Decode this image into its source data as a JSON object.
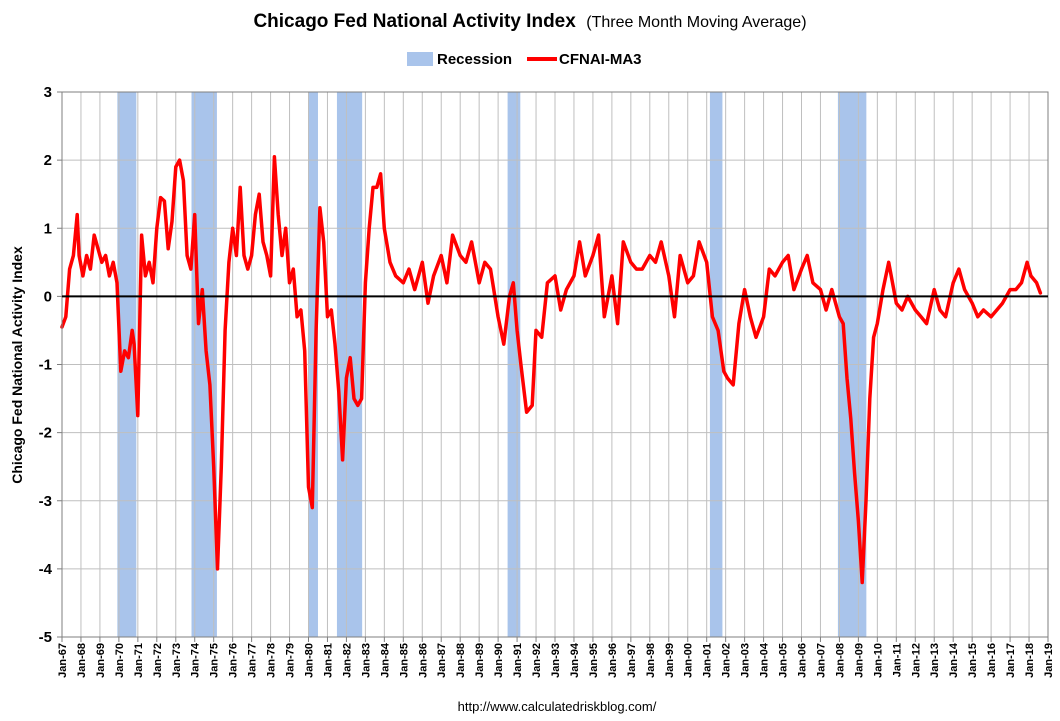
{
  "chart_data": {
    "type": "line",
    "title": "Chicago Fed National Activity Index",
    "subtitle": "(Three Month Moving Average)",
    "ylabel": "Chicago Fed National Activity Index",
    "xlabel": "",
    "source": "http://www.calculatedriskblog.com/",
    "ylim": [
      -5,
      3
    ],
    "yticks": [
      "3",
      "2",
      "1",
      "0",
      "-1",
      "-2",
      "-3",
      "-4",
      "-5"
    ],
    "xlim": [
      1967.0,
      2019.0
    ],
    "xticks": [
      "Jan-67",
      "Jan-68",
      "Jan-69",
      "Jan-70",
      "Jan-71",
      "Jan-72",
      "Jan-73",
      "Jan-74",
      "Jan-75",
      "Jan-76",
      "Jan-77",
      "Jan-78",
      "Jan-79",
      "Jan-80",
      "Jan-81",
      "Jan-82",
      "Jan-83",
      "Jan-84",
      "Jan-85",
      "Jan-86",
      "Jan-87",
      "Jan-88",
      "Jan-89",
      "Jan-90",
      "Jan-91",
      "Jan-92",
      "Jan-93",
      "Jan-94",
      "Jan-95",
      "Jan-96",
      "Jan-97",
      "Jan-98",
      "Jan-99",
      "Jan-00",
      "Jan-01",
      "Jan-02",
      "Jan-03",
      "Jan-04",
      "Jan-05",
      "Jan-06",
      "Jan-07",
      "Jan-08",
      "Jan-09",
      "Jan-10",
      "Jan-11",
      "Jan-12",
      "Jan-13",
      "Jan-14",
      "Jan-15",
      "Jan-16",
      "Jan-17",
      "Jan-18",
      "Jan-19"
    ],
    "grid": true,
    "legend_position": "top-center",
    "legend": [
      {
        "label": "Recession",
        "color": "#a9c4eb"
      },
      {
        "label": "CFNAI-MA3",
        "color": "#ff0000"
      }
    ],
    "recessions": [
      [
        1969.92,
        1970.92
      ],
      [
        1973.83,
        1975.17
      ],
      [
        1980.0,
        1980.5
      ],
      [
        1981.5,
        1982.83
      ],
      [
        1990.5,
        1991.17
      ],
      [
        2001.17,
        2001.83
      ],
      [
        2007.92,
        2009.42
      ]
    ],
    "series": [
      {
        "name": "CFNAI-MA3",
        "color": "#ff0000",
        "x": [
          1967.0,
          1967.2,
          1967.4,
          1967.6,
          1967.8,
          1967.9,
          1968.1,
          1968.3,
          1968.5,
          1968.7,
          1968.9,
          1969.1,
          1969.3,
          1969.5,
          1969.7,
          1969.9,
          1970.1,
          1970.3,
          1970.5,
          1970.7,
          1970.8,
          1971.0,
          1971.2,
          1971.4,
          1971.6,
          1971.8,
          1972.0,
          1972.2,
          1972.4,
          1972.6,
          1972.8,
          1973.0,
          1973.2,
          1973.4,
          1973.6,
          1973.8,
          1974.0,
          1974.2,
          1974.4,
          1974.6,
          1974.8,
          1975.0,
          1975.2,
          1975.4,
          1975.6,
          1975.8,
          1976.0,
          1976.2,
          1976.4,
          1976.6,
          1976.8,
          1977.0,
          1977.2,
          1977.4,
          1977.6,
          1977.8,
          1978.0,
          1978.2,
          1978.4,
          1978.6,
          1978.8,
          1979.0,
          1979.2,
          1979.4,
          1979.6,
          1979.8,
          1980.0,
          1980.2,
          1980.4,
          1980.6,
          1980.8,
          1981.0,
          1981.2,
          1981.4,
          1981.6,
          1981.8,
          1982.0,
          1982.2,
          1982.4,
          1982.6,
          1982.8,
          1983.0,
          1983.2,
          1983.4,
          1983.6,
          1983.8,
          1984.0,
          1984.3,
          1984.6,
          1985.0,
          1985.3,
          1985.6,
          1986.0,
          1986.3,
          1986.6,
          1987.0,
          1987.3,
          1987.6,
          1988.0,
          1988.3,
          1988.6,
          1989.0,
          1989.3,
          1989.6,
          1990.0,
          1990.3,
          1990.6,
          1990.8,
          1991.0,
          1991.2,
          1991.5,
          1991.8,
          1992.0,
          1992.3,
          1992.6,
          1993.0,
          1993.3,
          1993.6,
          1994.0,
          1994.3,
          1994.6,
          1995.0,
          1995.3,
          1995.6,
          1996.0,
          1996.3,
          1996.6,
          1997.0,
          1997.3,
          1997.6,
          1998.0,
          1998.3,
          1998.6,
          1999.0,
          1999.3,
          1999.6,
          2000.0,
          2000.3,
          2000.6,
          2001.0,
          2001.3,
          2001.6,
          2001.9,
          2002.1,
          2002.4,
          2002.7,
          2003.0,
          2003.3,
          2003.6,
          2004.0,
          2004.3,
          2004.6,
          2005.0,
          2005.3,
          2005.6,
          2006.0,
          2006.3,
          2006.6,
          2007.0,
          2007.3,
          2007.6,
          2008.0,
          2008.2,
          2008.4,
          2008.6,
          2008.8,
          2009.0,
          2009.2,
          2009.4,
          2009.6,
          2009.8,
          2010.0,
          2010.3,
          2010.6,
          2011.0,
          2011.3,
          2011.6,
          2012.0,
          2012.3,
          2012.6,
          2013.0,
          2013.3,
          2013.6,
          2014.0,
          2014.3,
          2014.6,
          2015.0,
          2015.3,
          2015.6,
          2016.0,
          2016.3,
          2016.6,
          2017.0,
          2017.3,
          2017.6,
          2017.9,
          2018.1,
          2018.4,
          2018.6
        ],
        "y": [
          -0.45,
          -0.3,
          0.4,
          0.6,
          1.2,
          0.6,
          0.3,
          0.6,
          0.4,
          0.9,
          0.7,
          0.5,
          0.6,
          0.3,
          0.5,
          0.2,
          -1.1,
          -0.8,
          -0.9,
          -0.5,
          -0.7,
          -1.75,
          0.9,
          0.3,
          0.5,
          0.2,
          1.0,
          1.45,
          1.4,
          0.7,
          1.1,
          1.9,
          2.0,
          1.7,
          0.6,
          0.4,
          1.2,
          -0.4,
          0.1,
          -0.8,
          -1.3,
          -2.5,
          -4.0,
          -2.5,
          -0.5,
          0.5,
          1.0,
          0.6,
          1.6,
          0.6,
          0.4,
          0.6,
          1.2,
          1.5,
          0.8,
          0.6,
          0.3,
          2.05,
          1.2,
          0.6,
          1.0,
          0.2,
          0.4,
          -0.3,
          -0.2,
          -0.8,
          -2.8,
          -3.1,
          -0.5,
          1.3,
          0.8,
          -0.3,
          -0.2,
          -0.7,
          -1.4,
          -2.4,
          -1.2,
          -0.9,
          -1.5,
          -1.6,
          -1.5,
          0.2,
          1.0,
          1.6,
          1.6,
          1.8,
          1.0,
          0.5,
          0.3,
          0.2,
          0.4,
          0.1,
          0.5,
          -0.1,
          0.3,
          0.6,
          0.2,
          0.9,
          0.6,
          0.5,
          0.8,
          0.2,
          0.5,
          0.4,
          -0.3,
          -0.7,
          0.0,
          0.2,
          -0.5,
          -1.0,
          -1.7,
          -1.6,
          -0.5,
          -0.6,
          0.2,
          0.3,
          -0.2,
          0.1,
          0.3,
          0.8,
          0.3,
          0.6,
          0.9,
          -0.3,
          0.3,
          -0.4,
          0.8,
          0.5,
          0.4,
          0.4,
          0.6,
          0.5,
          0.8,
          0.3,
          -0.3,
          0.6,
          0.2,
          0.3,
          0.8,
          0.5,
          -0.3,
          -0.5,
          -1.1,
          -1.2,
          -1.3,
          -0.4,
          0.1,
          -0.3,
          -0.6,
          -0.3,
          0.4,
          0.3,
          0.5,
          0.6,
          0.1,
          0.4,
          0.6,
          0.2,
          0.1,
          -0.2,
          0.1,
          -0.3,
          -0.4,
          -1.2,
          -1.8,
          -2.6,
          -3.3,
          -4.2,
          -3.0,
          -1.5,
          -0.6,
          -0.4,
          0.1,
          0.5,
          -0.1,
          -0.2,
          0.0,
          -0.2,
          -0.3,
          -0.4,
          0.1,
          -0.2,
          -0.3,
          0.2,
          0.4,
          0.1,
          -0.1,
          -0.3,
          -0.2,
          -0.3,
          -0.2,
          -0.1,
          0.1,
          0.1,
          0.2,
          0.5,
          0.3,
          0.2,
          0.05
        ]
      }
    ]
  }
}
